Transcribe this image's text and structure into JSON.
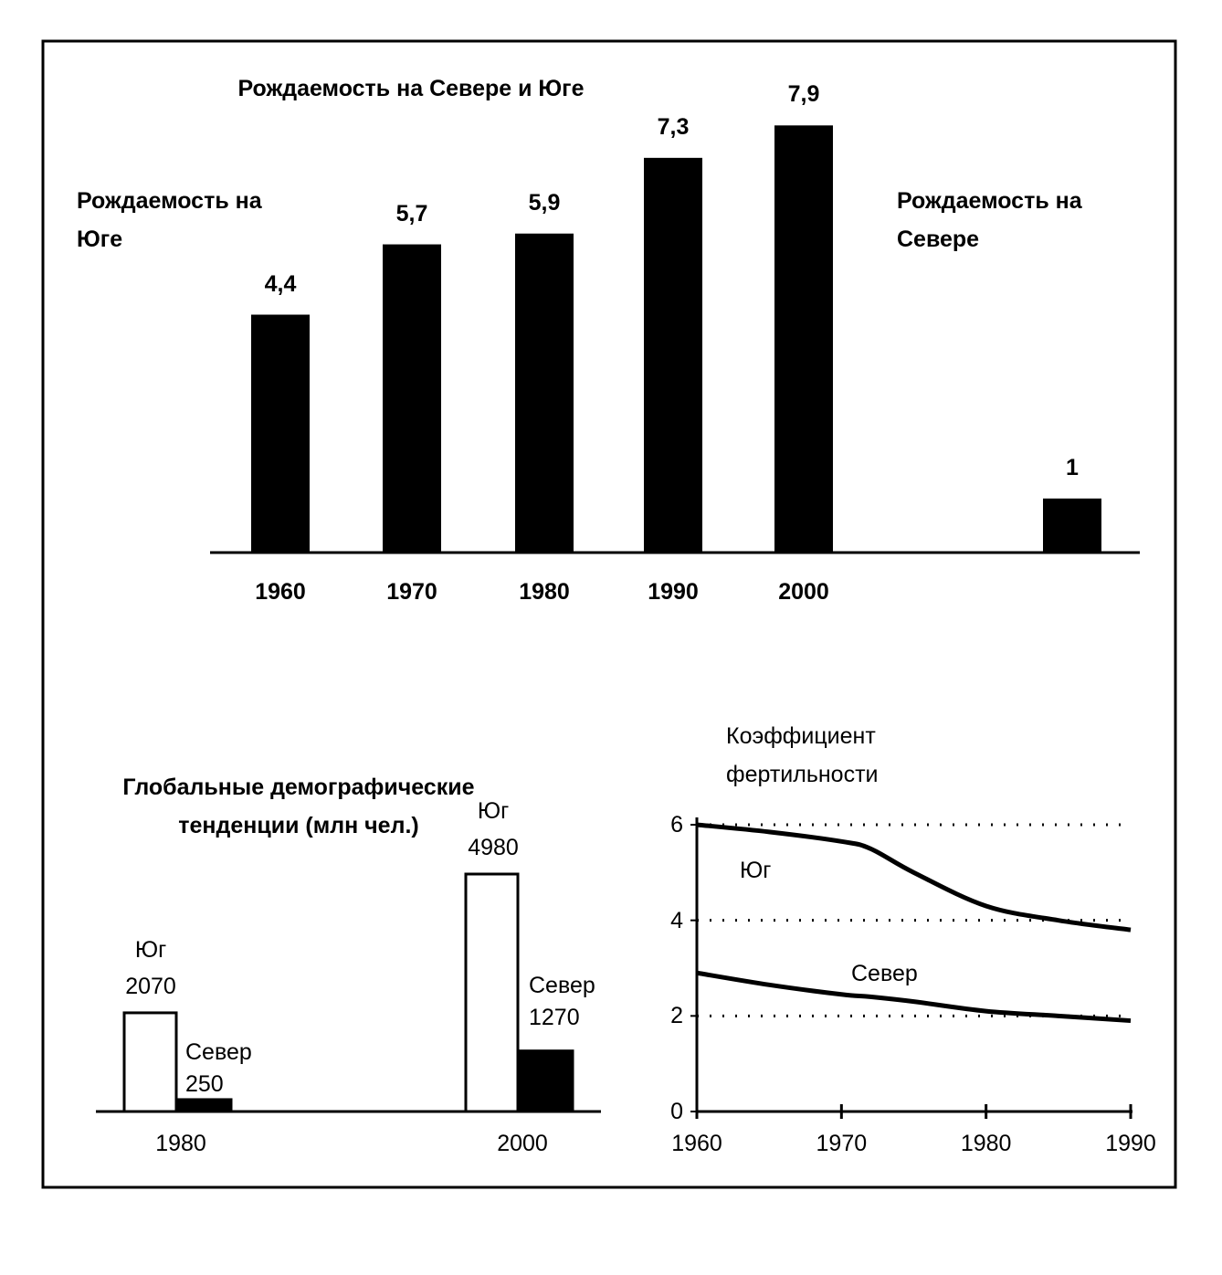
{
  "chart_data": [
    {
      "type": "bar",
      "title": "Рождаемость на Севере и Юге",
      "annotations": [
        "Рождаемость на Юге",
        "Рождаемость на Севере"
      ],
      "categories": [
        "1960",
        "1970",
        "1980",
        "1990",
        "2000",
        null
      ],
      "values": [
        4.4,
        5.7,
        5.9,
        7.3,
        7.9,
        1
      ],
      "value_labels": [
        "4,4",
        "5,7",
        "5,9",
        "7,3",
        "7,9",
        "1"
      ],
      "color": "#000000"
    },
    {
      "type": "grouped_bar",
      "title": "Глобальные демографические тенденции (млн чел.)",
      "categories": [
        "1980",
        "2000"
      ],
      "series": [
        {
          "name": "Юг",
          "color": "#ffffff",
          "values": [
            2070,
            4980
          ]
        },
        {
          "name": "Север",
          "color": "#000000",
          "values": [
            250,
            1270
          ]
        }
      ]
    },
    {
      "type": "line",
      "title": "Коэффициент фертильности",
      "x": [
        1960,
        1965,
        1970,
        1972,
        1975,
        1980,
        1985,
        1990
      ],
      "xlim": [
        1960,
        1990
      ],
      "xticks": [
        1960,
        1970,
        1980,
        1990
      ],
      "ylim": [
        0,
        6
      ],
      "yticks": [
        0,
        2,
        4,
        6
      ],
      "grid": true,
      "series": [
        {
          "name": "Юг",
          "color": "#000000",
          "values": [
            6,
            5.85,
            5.65,
            5.5,
            5.0,
            4.3,
            4.0,
            3.8
          ]
        },
        {
          "name": "Север",
          "color": "#000000",
          "values": [
            2.9,
            2.65,
            2.45,
            2.4,
            2.3,
            2.1,
            2.0,
            1.9
          ]
        }
      ]
    }
  ]
}
